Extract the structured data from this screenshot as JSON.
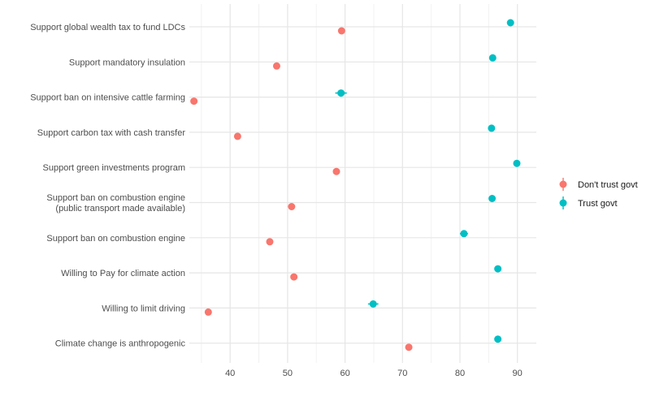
{
  "chart_data": {
    "type": "scatter",
    "title": "",
    "xlabel": "",
    "ylabel": "",
    "xlim": [
      32.9,
      93.3
    ],
    "x_ticks": [
      40,
      50,
      60,
      70,
      80,
      90
    ],
    "grid": true,
    "legend_position": "right",
    "categories": [
      "Support global wealth tax to fund LDCs",
      "Support mandatory insulation",
      "Support ban on intensive cattle farming",
      "Support carbon tax with cash transfer",
      "Support green investments program",
      "Support ban on combustion engine\n(public transport made available)",
      "Support ban on combustion engine",
      "Willing to Pay for climate action",
      "Willing to limit driving",
      "Climate change is anthropogenic"
    ],
    "series": [
      {
        "name": "Don't trust govt",
        "color": "#F8766D",
        "values": [
          59.4,
          48.1,
          33.7,
          41.3,
          58.5,
          50.7,
          46.9,
          51.1,
          36.2,
          71.1
        ],
        "errors": [
          0.3,
          0.3,
          0.3,
          0.3,
          0.3,
          0.3,
          0.3,
          0.3,
          0.3,
          0.3
        ]
      },
      {
        "name": "Trust govt",
        "color": "#00BFC4",
        "values": [
          88.8,
          85.7,
          59.3,
          85.5,
          89.9,
          85.6,
          80.7,
          86.6,
          64.9,
          86.6
        ],
        "errors": [
          0.4,
          0.4,
          1.0,
          0.4,
          0.4,
          0.4,
          0.7,
          0.4,
          0.9,
          0.4
        ]
      }
    ]
  }
}
